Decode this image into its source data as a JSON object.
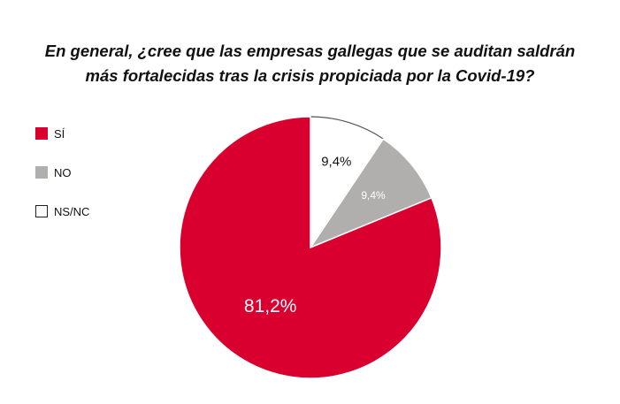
{
  "title": {
    "line1": "En general, ¿cree que las empresas gallegas que se auditan saldrán",
    "line2": "más fortalecidas tras la crisis propiciada por la Covid-19?"
  },
  "chart_data": {
    "type": "pie",
    "title": "En general, ¿cree que las empresas gallegas que se auditan saldrán más fortalecidas tras la crisis propiciada por la Covid-19?",
    "categories": [
      "SÍ",
      "NO",
      "NS/NC"
    ],
    "values": [
      81.2,
      9.4,
      9.4
    ],
    "labels": [
      "81,2%",
      "9,4%",
      "9,4%"
    ],
    "colors": [
      "#d90030",
      "#b1aeae",
      "#ffffff"
    ],
    "label_colors": [
      "#ffffff",
      "#ffffff",
      "#111111"
    ],
    "legend_position": "left"
  },
  "legend": [
    {
      "label": "SÍ",
      "color": "#d90030"
    },
    {
      "label": "NO",
      "color": "#b1aeae"
    },
    {
      "label": "NS/NC",
      "color": "#ffffff"
    }
  ]
}
